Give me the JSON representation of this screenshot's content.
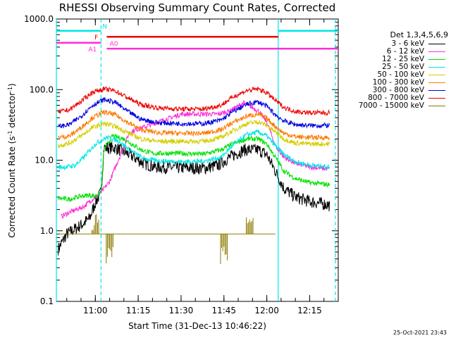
{
  "chart_data": {
    "type": "line",
    "title": "RHESSI Observing Summary Count Rates, Corrected",
    "xlabel": "Start Time (31-Dec-13 10:46:22)",
    "ylabel": "Corrected Count Rate (s",
    "ylabel_sup1": "-1",
    "ylabel_mid": " detector",
    "ylabel_sup2": "-1",
    "ylabel_end": ")",
    "y_scale": "log",
    "ylim": [
      0.1,
      1000.0
    ],
    "y_ticks": [
      {
        "value": 0.1,
        "label": "0.1"
      },
      {
        "value": 1.0,
        "label": "1.0"
      },
      {
        "value": 10.0,
        "label": "10.0"
      },
      {
        "value": 100.0,
        "label": "100.0"
      },
      {
        "value": 1000.0,
        "label": "1000.0"
      }
    ],
    "x_ticks": [
      {
        "value": "11:00",
        "label": "11:00"
      },
      {
        "value": "11:15",
        "label": "11:15"
      },
      {
        "value": "11:30",
        "label": "11:30"
      },
      {
        "value": "11:45",
        "label": "11:45"
      },
      {
        "value": "12:00",
        "label": "12:00"
      },
      {
        "value": "12:15",
        "label": "12:15"
      }
    ],
    "xlim": [
      "10:46:22",
      "12:25"
    ],
    "legend": {
      "placement": "right",
      "header": "Det 1,3,4,5,6,9",
      "entries": [
        {
          "label": "3 - 6 keV",
          "color": "#000000"
        },
        {
          "label": "6 - 12 keV",
          "color": "#ff2bd8"
        },
        {
          "label": "12 - 25 keV",
          "color": "#00e000"
        },
        {
          "label": "25 - 50 keV",
          "color": "#00e5e5"
        },
        {
          "label": "50 - 100 keV",
          "color": "#d4cf00"
        },
        {
          "label": "100 - 300 keV",
          "color": "#ff7a00"
        },
        {
          "label": "300 - 800 keV",
          "color": "#0000e0"
        },
        {
          "label": "800 - 7000 keV",
          "color": "#ee0000"
        },
        {
          "label": "7000 - 15000 keV",
          "color": "#8a7a00"
        }
      ]
    },
    "series": [
      {
        "name": "3 - 6 keV",
        "color": "#000000",
        "points": [
          [
            "10:47",
            0.55
          ],
          [
            "10:50",
            0.9
          ],
          [
            "10:55",
            1.2
          ],
          [
            "10:58",
            1.5
          ],
          [
            "11:00",
            2.5
          ],
          [
            "11:02",
            3.5
          ],
          [
            "11:03",
            15
          ],
          [
            "11:07",
            15
          ],
          [
            "11:12",
            12
          ],
          [
            "11:17",
            9
          ],
          [
            "11:21",
            8
          ],
          [
            "11:30",
            7.8
          ],
          [
            "11:38",
            7.7
          ],
          [
            "11:43",
            8.5
          ],
          [
            "11:47",
            11
          ],
          [
            "11:52",
            14
          ],
          [
            "11:57",
            14
          ],
          [
            "12:00",
            12
          ],
          [
            "12:03",
            7
          ],
          [
            "12:06",
            4
          ],
          [
            "12:10",
            3
          ],
          [
            "12:15",
            2.6
          ],
          [
            "12:20",
            2.4
          ],
          [
            "12:22",
            2.3
          ]
        ]
      },
      {
        "name": "6 - 12 keV",
        "color": "#ff2bd8",
        "points": [
          [
            "10:48",
            1.6
          ],
          [
            "10:52",
            1.9
          ],
          [
            "10:56",
            2.2
          ],
          [
            "10:59",
            2.8
          ],
          [
            "11:02",
            3.5
          ],
          [
            "11:05",
            5
          ],
          [
            "11:12",
            25
          ],
          [
            "11:30",
            45
          ],
          [
            "11:43",
            45
          ],
          [
            "11:47",
            50
          ],
          [
            "11:52",
            65
          ],
          [
            "11:57",
            50
          ],
          [
            "12:00",
            35
          ],
          [
            "12:03",
            16
          ],
          [
            "12:06",
            11
          ],
          [
            "12:10",
            9
          ],
          [
            "12:15",
            8
          ],
          [
            "12:22",
            7.5
          ]
        ]
      },
      {
        "name": "12 - 25 keV",
        "color": "#00e000",
        "points": [
          [
            "10:47",
            2.9
          ],
          [
            "10:51",
            2.8
          ],
          [
            "10:55",
            3.1
          ],
          [
            "10:58",
            3.2
          ],
          [
            "11:00",
            3.1
          ],
          [
            "11:02",
            3.5
          ],
          [
            "11:03",
            14
          ],
          [
            "11:06",
            22
          ],
          [
            "11:10",
            20
          ],
          [
            "11:16",
            14
          ],
          [
            "11:20",
            12.5
          ],
          [
            "11:30",
            12.5
          ],
          [
            "11:38",
            12.2
          ],
          [
            "11:44",
            14
          ],
          [
            "11:48",
            17
          ],
          [
            "11:53",
            20
          ],
          [
            "11:57",
            20
          ],
          [
            "12:00",
            17
          ],
          [
            "12:03",
            11
          ],
          [
            "12:06",
            7
          ],
          [
            "12:10",
            5.5
          ],
          [
            "12:15",
            4.8
          ],
          [
            "12:22",
            4.5
          ]
        ]
      },
      {
        "name": "25 - 50 keV",
        "color": "#00e5e5",
        "points": [
          [
            "10:47",
            8
          ],
          [
            "10:50",
            8
          ],
          [
            "10:53",
            8.5
          ],
          [
            "10:56",
            11
          ],
          [
            "11:00",
            17
          ],
          [
            "11:04",
            21
          ],
          [
            "11:08",
            19
          ],
          [
            "11:12",
            14
          ],
          [
            "11:17",
            10.5
          ],
          [
            "11:22",
            9.8
          ],
          [
            "11:30",
            9.5
          ],
          [
            "11:38",
            9.7
          ],
          [
            "11:44",
            11
          ],
          [
            "11:48",
            16
          ],
          [
            "11:53",
            23
          ],
          [
            "11:57",
            25
          ],
          [
            "12:00",
            22
          ],
          [
            "12:03",
            16
          ],
          [
            "12:06",
            12
          ],
          [
            "12:10",
            9.5
          ],
          [
            "12:15",
            8.5
          ],
          [
            "12:22",
            8
          ]
        ]
      },
      {
        "name": "50 - 100 keV",
        "color": "#d4cf00",
        "points": [
          [
            "10:47",
            16
          ],
          [
            "10:51",
            17.5
          ],
          [
            "10:55",
            22
          ],
          [
            "10:59",
            29
          ],
          [
            "11:03",
            33
          ],
          [
            "11:07",
            30
          ],
          [
            "11:11",
            25
          ],
          [
            "11:16",
            20
          ],
          [
            "11:22",
            18.5
          ],
          [
            "11:30",
            18.5
          ],
          [
            "11:38",
            18.5
          ],
          [
            "11:44",
            21
          ],
          [
            "11:48",
            26
          ],
          [
            "11:53",
            33
          ],
          [
            "11:57",
            35
          ],
          [
            "12:00",
            31
          ],
          [
            "12:03",
            25
          ],
          [
            "12:06",
            20
          ],
          [
            "12:10",
            17.5
          ],
          [
            "12:15",
            17
          ],
          [
            "12:22",
            17
          ]
        ]
      },
      {
        "name": "100 - 300 keV",
        "color": "#ff7a00",
        "points": [
          [
            "10:47",
            21
          ],
          [
            "10:51",
            22
          ],
          [
            "10:55",
            29
          ],
          [
            "10:59",
            40
          ],
          [
            "11:03",
            48
          ],
          [
            "11:07",
            44
          ],
          [
            "11:11",
            35
          ],
          [
            "11:16",
            27
          ],
          [
            "11:22",
            24.5
          ],
          [
            "11:30",
            24
          ],
          [
            "11:38",
            24
          ],
          [
            "11:44",
            27
          ],
          [
            "11:48",
            34
          ],
          [
            "11:53",
            42
          ],
          [
            "11:57",
            45
          ],
          [
            "12:00",
            39
          ],
          [
            "12:03",
            30
          ],
          [
            "12:06",
            24
          ],
          [
            "12:10",
            21.5
          ],
          [
            "12:15",
            21
          ],
          [
            "12:22",
            21
          ]
        ]
      },
      {
        "name": "300 - 800 keV",
        "color": "#0000e0",
        "points": [
          [
            "10:47",
            30
          ],
          [
            "10:51",
            32
          ],
          [
            "10:55",
            42
          ],
          [
            "10:59",
            60
          ],
          [
            "11:03",
            72
          ],
          [
            "11:07",
            66
          ],
          [
            "11:11",
            50
          ],
          [
            "11:16",
            38
          ],
          [
            "11:22",
            34
          ],
          [
            "11:30",
            33
          ],
          [
            "11:38",
            33
          ],
          [
            "11:44",
            37
          ],
          [
            "11:48",
            48
          ],
          [
            "11:53",
            62
          ],
          [
            "11:57",
            67
          ],
          [
            "12:00",
            58
          ],
          [
            "12:03",
            44
          ],
          [
            "12:06",
            36
          ],
          [
            "12:10",
            32
          ],
          [
            "12:15",
            31
          ],
          [
            "12:22",
            31
          ]
        ]
      },
      {
        "name": "800 - 7000 keV",
        "color": "#ee0000",
        "points": [
          [
            "10:47",
            48
          ],
          [
            "10:51",
            52
          ],
          [
            "10:55",
            68
          ],
          [
            "10:59",
            92
          ],
          [
            "11:03",
            102
          ],
          [
            "11:07",
            96
          ],
          [
            "11:11",
            78
          ],
          [
            "11:16",
            61
          ],
          [
            "11:22",
            55
          ],
          [
            "11:30",
            53
          ],
          [
            "11:38",
            53
          ],
          [
            "11:44",
            60
          ],
          [
            "11:48",
            78
          ],
          [
            "11:53",
            97
          ],
          [
            "11:57",
            102
          ],
          [
            "12:00",
            90
          ],
          [
            "12:03",
            70
          ],
          [
            "12:06",
            56
          ],
          [
            "12:10",
            49
          ],
          [
            "12:15",
            47
          ],
          [
            "12:22",
            47
          ]
        ]
      },
      {
        "name": "7000 - 15000 keV",
        "color": "#8a7a00",
        "points": [
          [
            "10:47",
            0.9
          ],
          [
            "10:50",
            0.9
          ],
          [
            "10:55",
            0.9
          ],
          [
            "11:00",
            0.9
          ],
          [
            "11:05",
            0.9
          ],
          [
            "11:10",
            0.9
          ],
          [
            "11:15",
            0.9
          ],
          [
            "11:20",
            0.9
          ],
          [
            "11:25",
            0.9
          ],
          [
            "11:30",
            0.9
          ],
          [
            "11:35",
            0.9
          ],
          [
            "11:40",
            0.9
          ],
          [
            "11:45",
            0.9
          ],
          [
            "11:50",
            0.9
          ],
          [
            "11:55",
            0.9
          ],
          [
            "12:00",
            0.9
          ],
          [
            "12:03",
            0.9
          ]
        ]
      }
    ],
    "bursts": [
      {
        "time": "11:00",
        "peak": 1.8,
        "color": "#8a7a00"
      },
      {
        "time": "11:05",
        "peak": 0.6,
        "color": "#8a7a00"
      },
      {
        "time": "11:45",
        "peak": 0.6,
        "color": "#8a7a00"
      },
      {
        "time": "11:54",
        "peak": 1.9,
        "color": "#8a7a00"
      }
    ],
    "state_bars": [
      {
        "label": "N",
        "start": "10:46:22",
        "end": "11:02",
        "level": 680,
        "color": "#00e5e5"
      },
      {
        "label": "N",
        "start": "12:04",
        "end": "12:25",
        "level": 680,
        "color": "#00e5e5"
      },
      {
        "label": "F",
        "start": "11:04",
        "end": "12:04",
        "level": 560,
        "color": "#ee0000"
      },
      {
        "label": "A1",
        "start": "10:46:22",
        "end": "11:02",
        "level": 460,
        "color": "#ff2bd8"
      },
      {
        "label": "A0",
        "start": "11:04",
        "end": "12:25",
        "level": 380,
        "color": "#ff2bd8"
      }
    ],
    "state_labels": {
      "N": "N",
      "F": "F",
      "A1": "A1",
      "A0": "A0"
    },
    "vertical_markers": [
      {
        "time": "10:46:22",
        "style": "solid",
        "color": "#00e5e5"
      },
      {
        "time": "11:02",
        "style": "dashed",
        "color": "#00e5e5"
      },
      {
        "time": "12:04",
        "style": "solid",
        "color": "#00e5e5"
      },
      {
        "time": "12:24",
        "style": "dashed",
        "color": "#00e5e5"
      }
    ],
    "grid": false
  },
  "timestamp": "25-Oct-2021 23:43"
}
